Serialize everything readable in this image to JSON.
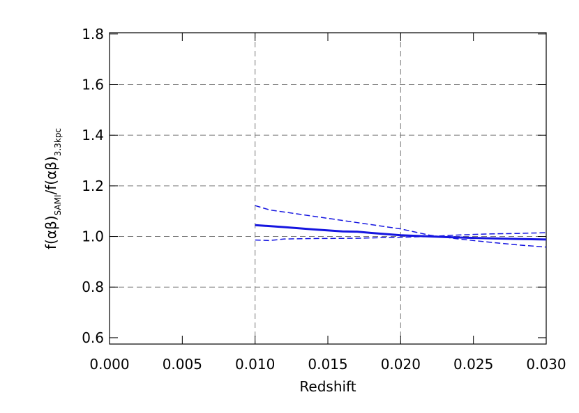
{
  "chart_data": {
    "type": "line",
    "xlabel": "Redshift",
    "ylabel": {
      "main": "f(αβ)",
      "sub": "SAMI",
      "main2": "/f(αβ)",
      "sub2": "3.3kpc"
    },
    "xlim": [
      0.0,
      0.03
    ],
    "ylim": [
      0.575,
      1.805
    ],
    "xticks": [
      {
        "value": 0,
        "label": "0.000"
      },
      {
        "value": 0.005,
        "label": "0.005"
      },
      {
        "value": 0.01,
        "label": "0.010"
      },
      {
        "value": 0.015,
        "label": "0.015"
      },
      {
        "value": 0.02,
        "label": "0.020"
      },
      {
        "value": 0.025,
        "label": "0.025"
      },
      {
        "value": 0.03,
        "label": "0.030"
      }
    ],
    "yticks": [
      {
        "value": 0.6,
        "label": "0.6"
      },
      {
        "value": 0.8,
        "label": "0.8"
      },
      {
        "value": 1.0,
        "label": "1.0"
      },
      {
        "value": 1.2,
        "label": "1.2"
      },
      {
        "value": 1.4,
        "label": "1.4"
      },
      {
        "value": 1.6,
        "label": "1.6"
      },
      {
        "value": 1.8,
        "label": "1.8"
      }
    ],
    "xgrid": [
      0.01,
      0.02
    ],
    "ygrid": [
      0.8,
      1.0,
      1.2,
      1.4,
      1.6
    ],
    "series": [
      {
        "color": "#1515e0",
        "dash": false,
        "width": 3,
        "x": [
          0.01,
          0.012,
          0.014,
          0.016,
          0.017,
          0.018,
          0.02,
          0.022,
          0.024,
          0.026,
          0.028,
          0.03
        ],
        "values": [
          1.045,
          1.037,
          1.028,
          1.02,
          1.019,
          1.014,
          1.005,
          1.0,
          0.996,
          0.993,
          0.99,
          0.988
        ]
      },
      {
        "color": "#1515e0",
        "dash": true,
        "width": 1.5,
        "x": [
          0.01,
          0.011,
          0.014,
          0.017,
          0.02,
          0.022,
          0.024,
          0.026,
          0.028,
          0.03
        ],
        "values": [
          1.122,
          1.105,
          1.08,
          1.055,
          1.03,
          1.005,
          0.99,
          0.978,
          0.967,
          0.958
        ]
      },
      {
        "color": "#1515e0",
        "dash": true,
        "width": 1.5,
        "x": [
          0.01,
          0.011,
          0.012,
          0.014,
          0.017,
          0.02,
          0.022,
          0.024,
          0.026,
          0.028,
          0.03
        ],
        "values": [
          0.986,
          0.984,
          0.99,
          0.992,
          0.993,
          0.997,
          1.0,
          1.006,
          1.01,
          1.012,
          1.015
        ]
      }
    ]
  }
}
